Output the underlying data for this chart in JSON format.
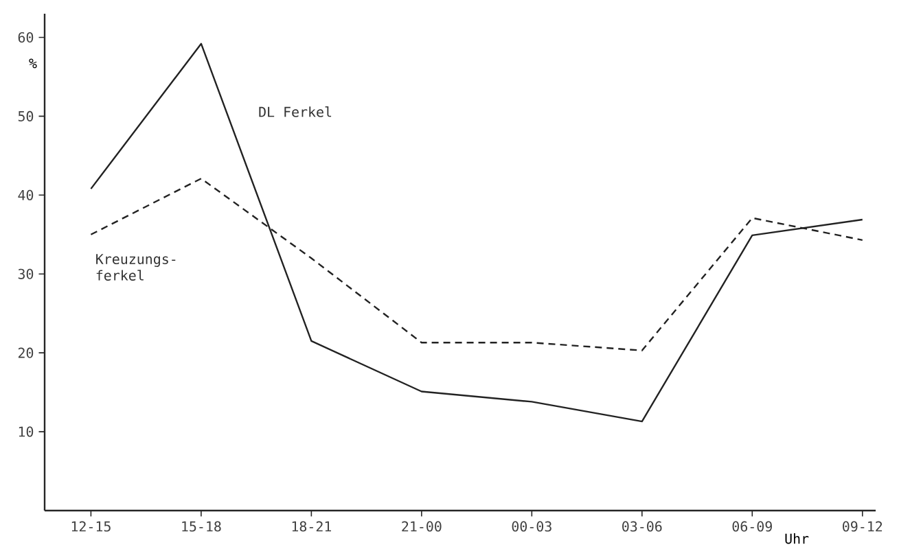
{
  "chart_data": {
    "type": "line",
    "ylabel": "%",
    "xlabel": "Uhr",
    "categories": [
      "12-15",
      "15-18",
      "18-21",
      "21-00",
      "00-03",
      "03-06",
      "06-09",
      "09-12"
    ],
    "series": [
      {
        "name": "DL Ferkel",
        "color": "#222222",
        "line_style": "solid",
        "values": [
          40.8,
          59.2,
          21.5,
          15.1,
          13.8,
          11.3,
          34.9,
          36.9
        ]
      },
      {
        "name": "Kreuzungs-ferkel",
        "color": "#222222",
        "line_style": "dashed",
        "values": [
          35.0,
          42.1,
          32.0,
          21.3,
          21.3,
          20.3,
          37.1,
          34.3
        ]
      }
    ],
    "ylim": [
      0,
      63
    ],
    "yticks": [
      10,
      20,
      30,
      40,
      50,
      60
    ],
    "grid": false,
    "legend": false,
    "marker": "none"
  }
}
